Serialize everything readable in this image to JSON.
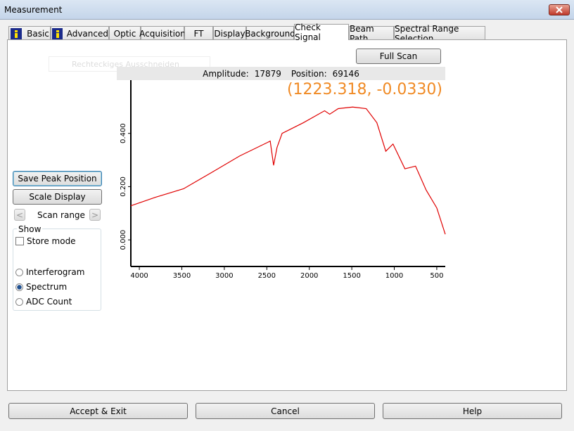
{
  "window": {
    "title": "Measurement"
  },
  "tabs": [
    "Basic",
    "Advanced",
    "Optic",
    "Acquisition",
    "FT",
    "Display",
    "Background",
    "Check Signal",
    "Beam Path",
    "Spectral Range Selection"
  ],
  "active_tab": 7,
  "ghost_label": "Rechteckiges Ausschneiden",
  "full_scan": "Full Scan",
  "status": {
    "amplitude_label": "Amplitude:",
    "amplitude": 17879,
    "position_label": "Position:",
    "position": 69146
  },
  "cursor": "(1223.318, -0.0330)",
  "left_panel": {
    "save_peak": "Save Peak Position",
    "scale_display": "Scale Display",
    "scan_prev": "<",
    "scan_range": "Scan range",
    "scan_next": ">",
    "show_group": "Show",
    "store_mode": "Store mode",
    "store_mode_checked": false,
    "options": [
      "Interferogram",
      "Spectrum",
      "ADC Count"
    ],
    "selected_option": 1
  },
  "buttons": [
    "Accept & Exit",
    "Cancel",
    "Help"
  ],
  "chart": {
    "type": "line",
    "color": "#e00000",
    "x": [
      4100,
      3810,
      3480,
      3150,
      2820,
      2460,
      2420,
      2380,
      2320,
      2070,
      1820,
      1760,
      1660,
      1490,
      1330,
      1205,
      1100,
      1015,
      875,
      750,
      625,
      500,
      400
    ],
    "values": [
      0.128,
      0.16,
      0.192,
      0.253,
      0.315,
      0.371,
      0.28,
      0.347,
      0.4,
      0.44,
      0.485,
      0.472,
      0.493,
      0.499,
      0.493,
      0.44,
      0.333,
      0.36,
      0.267,
      0.277,
      0.187,
      0.12,
      0.021
    ],
    "xlim": [
      4100,
      400
    ],
    "ylim": [
      -0.1,
      0.6
    ],
    "xticks": [
      4000,
      3500,
      3000,
      2500,
      2000,
      1500,
      1000,
      500
    ],
    "yticks": [
      {
        "value": 0,
        "label": "0.000"
      },
      {
        "value": 0.2,
        "label": "0.200"
      },
      {
        "value": 0.4,
        "label": "0.400"
      }
    ]
  }
}
